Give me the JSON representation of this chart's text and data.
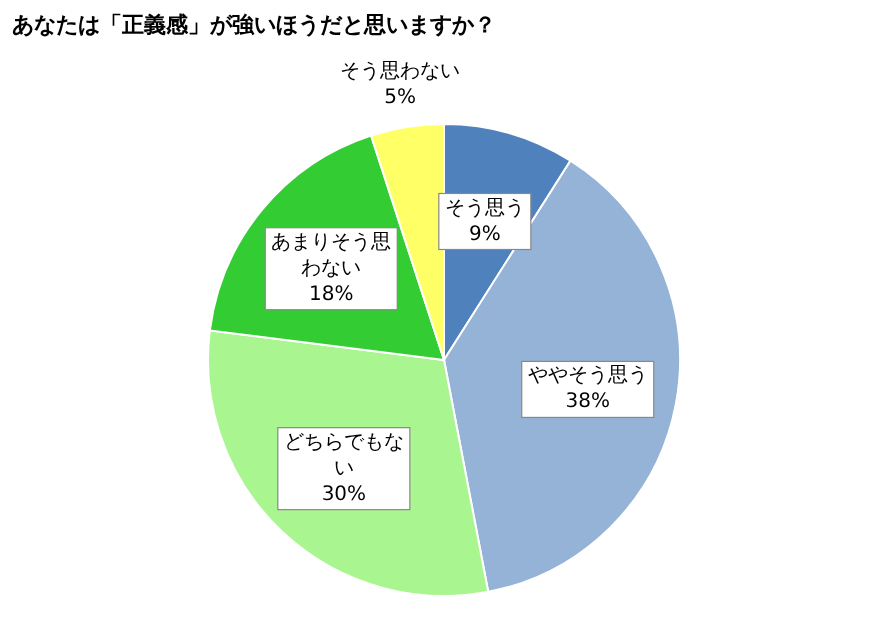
{
  "chart_data": {
    "type": "pie",
    "title": "あなたは「正義感」が強いほうだと思いますか？",
    "categories": [
      "そう思う",
      "ややそう思う",
      "どちらでもない",
      "あまりそう思わない",
      "そう思わない"
    ],
    "values": [
      9,
      38,
      30,
      18,
      5
    ],
    "value_labels": [
      "9%",
      "38%",
      "30%",
      "18%",
      "5%"
    ],
    "colors": [
      "#4f81bd",
      "#95b3d7",
      "#a9f590",
      "#33cc33",
      "#ffff66"
    ],
    "legend": false
  }
}
